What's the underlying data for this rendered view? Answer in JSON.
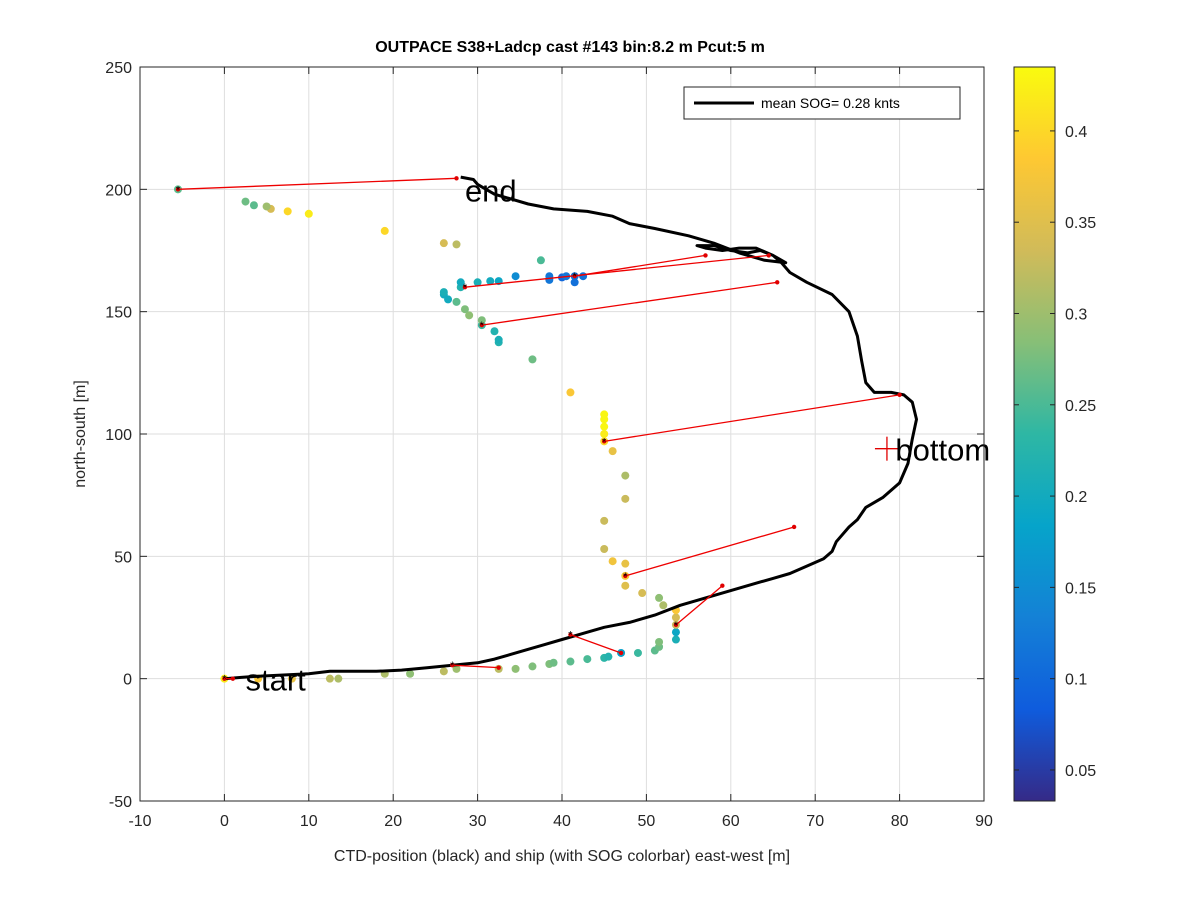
{
  "chart_data": {
    "type": "scatter",
    "title": "OUTPACE S38+Ladcp cast #143 bin:8.2 m  Pcut:5 m",
    "xlabel": "CTD-position (black) and ship (with SOG colorbar) east-west [m]",
    "ylabel": "north-south [m]",
    "xlim": [
      -10,
      90
    ],
    "ylim": [
      -50,
      250
    ],
    "xticks": [
      -10,
      0,
      10,
      20,
      30,
      40,
      50,
      60,
      70,
      80,
      90
    ],
    "yticks": [
      -50,
      0,
      50,
      100,
      150,
      200,
      250
    ],
    "grid": true,
    "legend": {
      "label": "mean SOG=  0.28 knts",
      "placement": "top-right"
    },
    "annotations": [
      {
        "text": "start",
        "x": 2.5,
        "y": 0
      },
      {
        "text": "end",
        "x": 28.5,
        "y": 200
      },
      {
        "text": "bottom",
        "x": 79.5,
        "y": 94
      }
    ],
    "bottom_marker": {
      "x": 78.5,
      "y": 94
    },
    "colorbar": {
      "range": [
        0.033,
        0.435
      ],
      "ticks": [
        0.05,
        0.1,
        0.15,
        0.2,
        0.25,
        0.3,
        0.35,
        0.4
      ],
      "colormap": "parula"
    },
    "series": [
      {
        "name": "CTD-position (black)",
        "style": "line",
        "color": "#000000",
        "points": [
          [
            0,
            0
          ],
          [
            2,
            0.5
          ],
          [
            4,
            1
          ],
          [
            7,
            1.5
          ],
          [
            10,
            2
          ],
          [
            12.5,
            3
          ],
          [
            15,
            3
          ],
          [
            18,
            3
          ],
          [
            21,
            3.5
          ],
          [
            24,
            4.5
          ],
          [
            27,
            5.5
          ],
          [
            30,
            6.5
          ],
          [
            32,
            8
          ],
          [
            34,
            10
          ],
          [
            36,
            12
          ],
          [
            38,
            14
          ],
          [
            40,
            16
          ],
          [
            43,
            19
          ],
          [
            45,
            21
          ],
          [
            48,
            23
          ],
          [
            51,
            26
          ],
          [
            54,
            30
          ],
          [
            57,
            33
          ],
          [
            60,
            36
          ],
          [
            63,
            39
          ],
          [
            65,
            41
          ],
          [
            67,
            43
          ],
          [
            69,
            46
          ],
          [
            71,
            49
          ],
          [
            72,
            52
          ],
          [
            72.5,
            56
          ],
          [
            73,
            58
          ],
          [
            74,
            62
          ],
          [
            75,
            65
          ],
          [
            76,
            70
          ],
          [
            78,
            74
          ],
          [
            80,
            80
          ],
          [
            81,
            88
          ],
          [
            81.5,
            98
          ],
          [
            82,
            106
          ],
          [
            81.5,
            113
          ],
          [
            80.5,
            116
          ],
          [
            79,
            117
          ],
          [
            77,
            117
          ],
          [
            76,
            121
          ],
          [
            75.5,
            130
          ],
          [
            75,
            140
          ],
          [
            74,
            150
          ],
          [
            72,
            157
          ],
          [
            69,
            162
          ],
          [
            67,
            166
          ],
          [
            66,
            170
          ],
          [
            65,
            173
          ],
          [
            63,
            176
          ],
          [
            61,
            176
          ],
          [
            59,
            175
          ],
          [
            57,
            176
          ],
          [
            56,
            177
          ],
          [
            58,
            177
          ],
          [
            60,
            175
          ],
          [
            62,
            174
          ],
          [
            63.5,
            175
          ],
          [
            65,
            173
          ],
          [
            66.5,
            170
          ],
          [
            64,
            171
          ],
          [
            61,
            174
          ],
          [
            58,
            178
          ],
          [
            55,
            181
          ],
          [
            51,
            184
          ],
          [
            48,
            186
          ],
          [
            46,
            189
          ],
          [
            43,
            191
          ],
          [
            39,
            192
          ],
          [
            36,
            194
          ],
          [
            34,
            196
          ],
          [
            32,
            198
          ],
          [
            31,
            200
          ],
          [
            30,
            202
          ],
          [
            29.5,
            204
          ],
          [
            28,
            205
          ]
        ]
      },
      {
        "name": "CTD-to-ship connectors",
        "style": "segments",
        "color": "#ee0000",
        "segments": [
          [
            [
              0,
              0
            ],
            [
              1,
              0
            ]
          ],
          [
            [
              27,
              5.5
            ],
            [
              32.5,
              4.5
            ]
          ],
          [
            [
              41,
              18
            ],
            [
              47,
              10.5
            ]
          ],
          [
            [
              53.5,
              22
            ],
            [
              59,
              38
            ]
          ],
          [
            [
              47.5,
              42
            ],
            [
              67.5,
              62
            ]
          ],
          [
            [
              45,
              97
            ],
            [
              80,
              116
            ]
          ],
          [
            [
              30.5,
              144.5
            ],
            [
              65.5,
              162
            ]
          ],
          [
            [
              28.5,
              160
            ],
            [
              64.5,
              173
            ]
          ],
          [
            [
              41.5,
              164.5
            ],
            [
              57,
              173
            ]
          ],
          [
            [
              -5.5,
              200
            ],
            [
              27.5,
              204.5
            ]
          ]
        ]
      },
      {
        "name": "ship (with SOG colorbar)",
        "style": "colored-markers",
        "points": [
          [
            0,
            0,
            0.42
          ],
          [
            4,
            0,
            0.38
          ],
          [
            8,
            0,
            0.36
          ],
          [
            12.5,
            0,
            0.32
          ],
          [
            13.5,
            0,
            0.31
          ],
          [
            19,
            2,
            0.31
          ],
          [
            22,
            2,
            0.29
          ],
          [
            26,
            3,
            0.32
          ],
          [
            27.5,
            4,
            0.3
          ],
          [
            32.5,
            4,
            0.32
          ],
          [
            34.5,
            4,
            0.29
          ],
          [
            36.5,
            5,
            0.28
          ],
          [
            38.5,
            6,
            0.28
          ],
          [
            39,
            6.5,
            0.27
          ],
          [
            41,
            7,
            0.26
          ],
          [
            43,
            8,
            0.25
          ],
          [
            45,
            8.5,
            0.23
          ],
          [
            45.5,
            9,
            0.22
          ],
          [
            47,
            10.5,
            0.18
          ],
          [
            49,
            10.5,
            0.24
          ],
          [
            51,
            11.5,
            0.26
          ],
          [
            51.5,
            13,
            0.27
          ],
          [
            51.5,
            15,
            0.28
          ],
          [
            53.5,
            16,
            0.21
          ],
          [
            53.5,
            19,
            0.19
          ],
          [
            53.5,
            22,
            0.33
          ],
          [
            53.5,
            25,
            0.34
          ],
          [
            53.5,
            28,
            0.38
          ],
          [
            52,
            30,
            0.31
          ],
          [
            51.5,
            33,
            0.29
          ],
          [
            49.5,
            35,
            0.34
          ],
          [
            47.5,
            38,
            0.35
          ],
          [
            47.5,
            42,
            0.38
          ],
          [
            47.5,
            47,
            0.36
          ],
          [
            46,
            48,
            0.37
          ],
          [
            45,
            53,
            0.33
          ],
          [
            45,
            64.5,
            0.33
          ],
          [
            47.5,
            73.5,
            0.33
          ],
          [
            47.5,
            83,
            0.31
          ],
          [
            46,
            93,
            0.36
          ],
          [
            45,
            97,
            0.4
          ],
          [
            45,
            100,
            0.42
          ],
          [
            45,
            103,
            0.43
          ],
          [
            45,
            106,
            0.43
          ],
          [
            45,
            108,
            0.43
          ],
          [
            41,
            117,
            0.38
          ],
          [
            36.5,
            130.5,
            0.27
          ],
          [
            32.5,
            137.5,
            0.22
          ],
          [
            32.5,
            138.5,
            0.21
          ],
          [
            32,
            142,
            0.22
          ],
          [
            30.5,
            144.5,
            0.24
          ],
          [
            30.5,
            146.5,
            0.28
          ],
          [
            29,
            148.5,
            0.29
          ],
          [
            28.5,
            151,
            0.28
          ],
          [
            27.5,
            154,
            0.26
          ],
          [
            26.5,
            155,
            0.2
          ],
          [
            26,
            157,
            0.2
          ],
          [
            26,
            158,
            0.21
          ],
          [
            28,
            160,
            0.22
          ],
          [
            28,
            162,
            0.2
          ],
          [
            30,
            162,
            0.21
          ],
          [
            31.5,
            162.5,
            0.2
          ],
          [
            32.5,
            162.5,
            0.19
          ],
          [
            34.5,
            164.5,
            0.15
          ],
          [
            38.5,
            163,
            0.12
          ],
          [
            38.5,
            164.5,
            0.12
          ],
          [
            40,
            164,
            0.1
          ],
          [
            40.5,
            164.5,
            0.12
          ],
          [
            41.5,
            164.5,
            0.12
          ],
          [
            42.5,
            164.5,
            0.11
          ],
          [
            41.5,
            162,
            0.11
          ],
          [
            37.5,
            171,
            0.25
          ],
          [
            27.5,
            177.5,
            0.32
          ],
          [
            26,
            178,
            0.34
          ],
          [
            19,
            183,
            0.4
          ],
          [
            10,
            190,
            0.42
          ],
          [
            7.5,
            191,
            0.4
          ],
          [
            5.5,
            192,
            0.34
          ],
          [
            5,
            193,
            0.3
          ],
          [
            3.5,
            193.5,
            0.26
          ],
          [
            2.5,
            195,
            0.27
          ],
          [
            -5.5,
            200,
            0.26
          ]
        ]
      }
    ]
  }
}
